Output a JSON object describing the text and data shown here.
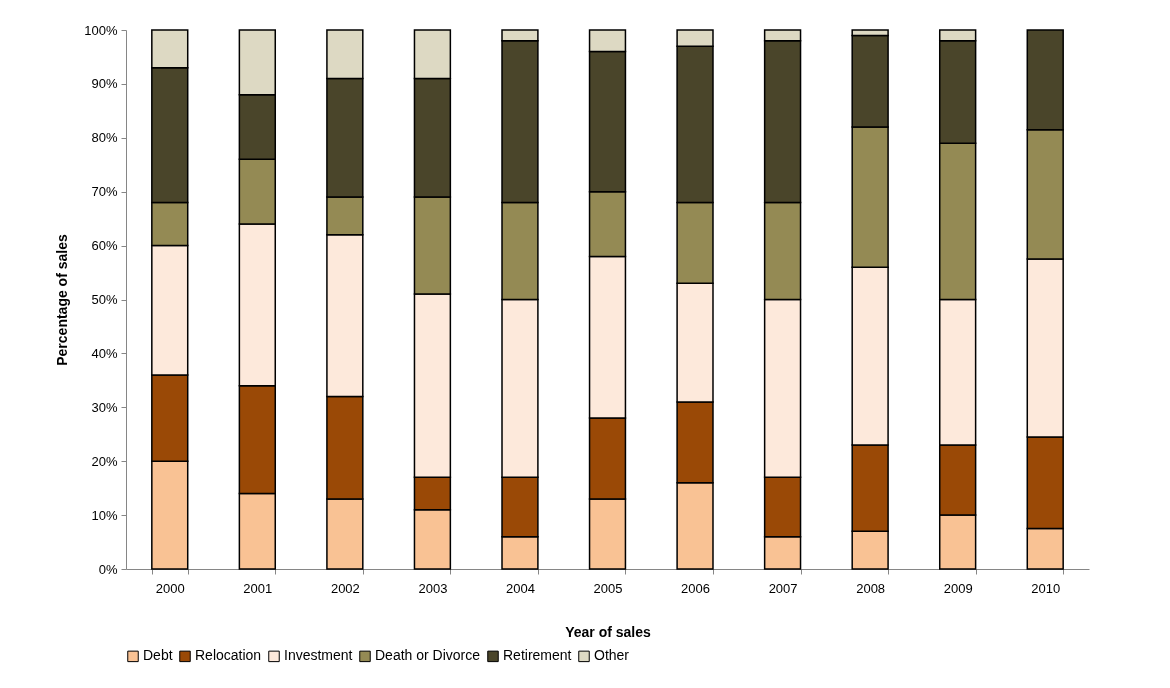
{
  "chart_data": {
    "type": "bar",
    "stacked": true,
    "xlabel": "Year of sales",
    "ylabel": "Percentage of sales",
    "categories": [
      "2000",
      "2001",
      "2002",
      "2003",
      "2004",
      "2005",
      "2006",
      "2007",
      "2008",
      "2009",
      "2010"
    ],
    "series": [
      {
        "name": "Debt",
        "color": "#f9c294",
        "values": [
          20,
          14,
          13,
          11,
          6,
          13,
          16,
          6,
          7,
          10,
          7.5
        ]
      },
      {
        "name": "Relocation",
        "color": "#9a4906",
        "values": [
          16,
          20,
          19,
          6,
          11,
          15,
          15,
          11,
          16,
          13,
          17
        ]
      },
      {
        "name": "Investment",
        "color": "#fde9db",
        "values": [
          24,
          30,
          30,
          34,
          33,
          30,
          22,
          33,
          33,
          27,
          33
        ]
      },
      {
        "name": "Death or Divorce",
        "color": "#948a54",
        "values": [
          8,
          12,
          7,
          18,
          18,
          12,
          15,
          18,
          26,
          29,
          24
        ]
      },
      {
        "name": "Retirement",
        "color": "#4a452a",
        "values": [
          25,
          12,
          22,
          22,
          30,
          26,
          29,
          30,
          17,
          19,
          18.5
        ]
      },
      {
        "name": "Other",
        "color": "#ddd9c3",
        "values": [
          7,
          12,
          9,
          9,
          2,
          4,
          3,
          2,
          1,
          2,
          null
        ]
      }
    ],
    "ylim": [
      0,
      100
    ],
    "yticks": [
      {
        "value": 0,
        "label": "0%"
      },
      {
        "value": 10,
        "label": "10%"
      },
      {
        "value": 20,
        "label": "20%"
      },
      {
        "value": 30,
        "label": "30%"
      },
      {
        "value": 40,
        "label": "40%"
      },
      {
        "value": 50,
        "label": "50%"
      },
      {
        "value": 60,
        "label": "60%"
      },
      {
        "value": 70,
        "label": "70%"
      },
      {
        "value": 80,
        "label": "80%"
      },
      {
        "value": 90,
        "label": "90%"
      },
      {
        "value": 100,
        "label": "100%"
      }
    ],
    "legend": "bottom",
    "grid": false
  }
}
